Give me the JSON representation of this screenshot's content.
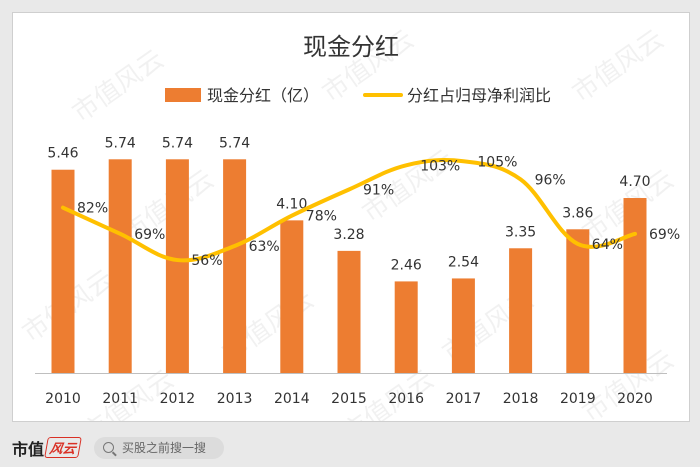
{
  "chart_data": {
    "type": "bar+line",
    "title": "现金分红",
    "categories": [
      "2010",
      "2011",
      "2012",
      "2013",
      "2014",
      "2015",
      "2016",
      "2017",
      "2018",
      "2019",
      "2020"
    ],
    "series": [
      {
        "name": "现金分红（亿）",
        "type": "bar",
        "color": "#ed7d31",
        "values": [
          5.46,
          5.74,
          5.74,
          5.74,
          4.1,
          3.28,
          2.46,
          2.54,
          3.35,
          3.86,
          4.7
        ],
        "labels": [
          "5.46",
          "5.74",
          "5.74",
          "5.74",
          "4.10",
          "3.28",
          "2.46",
          "2.54",
          "3.35",
          "3.86",
          "4.70"
        ]
      },
      {
        "name": "分红占归母净利润比",
        "type": "line",
        "color": "#ffc000",
        "values": [
          82,
          69,
          56,
          63,
          78,
          91,
          103,
          105,
          96,
          64,
          69
        ],
        "labels": [
          "82%",
          "69%",
          "56%",
          "63%",
          "78%",
          "91%",
          "103%",
          "105%",
          "96%",
          "64%",
          "69%"
        ]
      }
    ],
    "bar_axis": {
      "min": 0,
      "max": 6.5
    },
    "line_axis": {
      "min": 0,
      "max": 120
    },
    "legend": "top"
  },
  "watermark": "市值风云",
  "footer": {
    "brand": "市值",
    "brand_mark": "风云",
    "search_placeholder": "买股之前搜一搜"
  }
}
